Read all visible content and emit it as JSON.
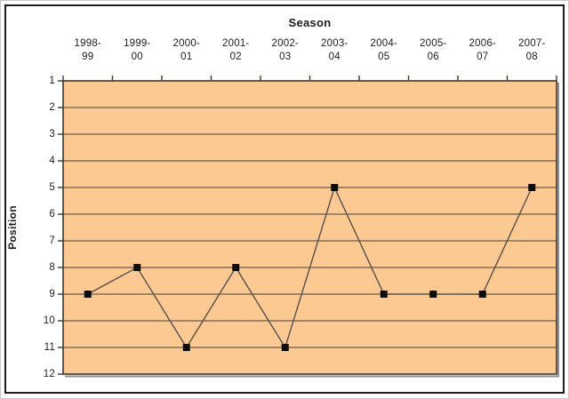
{
  "chart_data": {
    "type": "line",
    "title": "Season",
    "xlabel": "Season",
    "ylabel": "Position",
    "categories": [
      "1998-99",
      "1999-00",
      "2000-01",
      "2001-02",
      "2002-03",
      "2003-04",
      "2004-05",
      "2005-06",
      "2006-07",
      "2007-08"
    ],
    "series": [
      {
        "name": "Position",
        "values": [
          9,
          8,
          11,
          8,
          11,
          5,
          9,
          9,
          9,
          5
        ]
      }
    ],
    "y_ticks": [
      1,
      2,
      3,
      4,
      5,
      6,
      7,
      8,
      9,
      10,
      11,
      12
    ],
    "ylim": [
      1,
      12
    ],
    "y_axis_inverted": true,
    "x_axis_position": "top",
    "grid": "horizontal",
    "legend": "none",
    "marker": "square",
    "colors": {
      "plot_background": "#FCC992",
      "page_background": "#FFFFFF",
      "gridline": "#45403A",
      "axis_line": "#3C3832",
      "series_line": "#56524C",
      "marker": "#0D0D0D",
      "text": "#1C1C24",
      "frame_border": "#1C1C1C",
      "plot_shadow": "#8F8F8F"
    }
  }
}
